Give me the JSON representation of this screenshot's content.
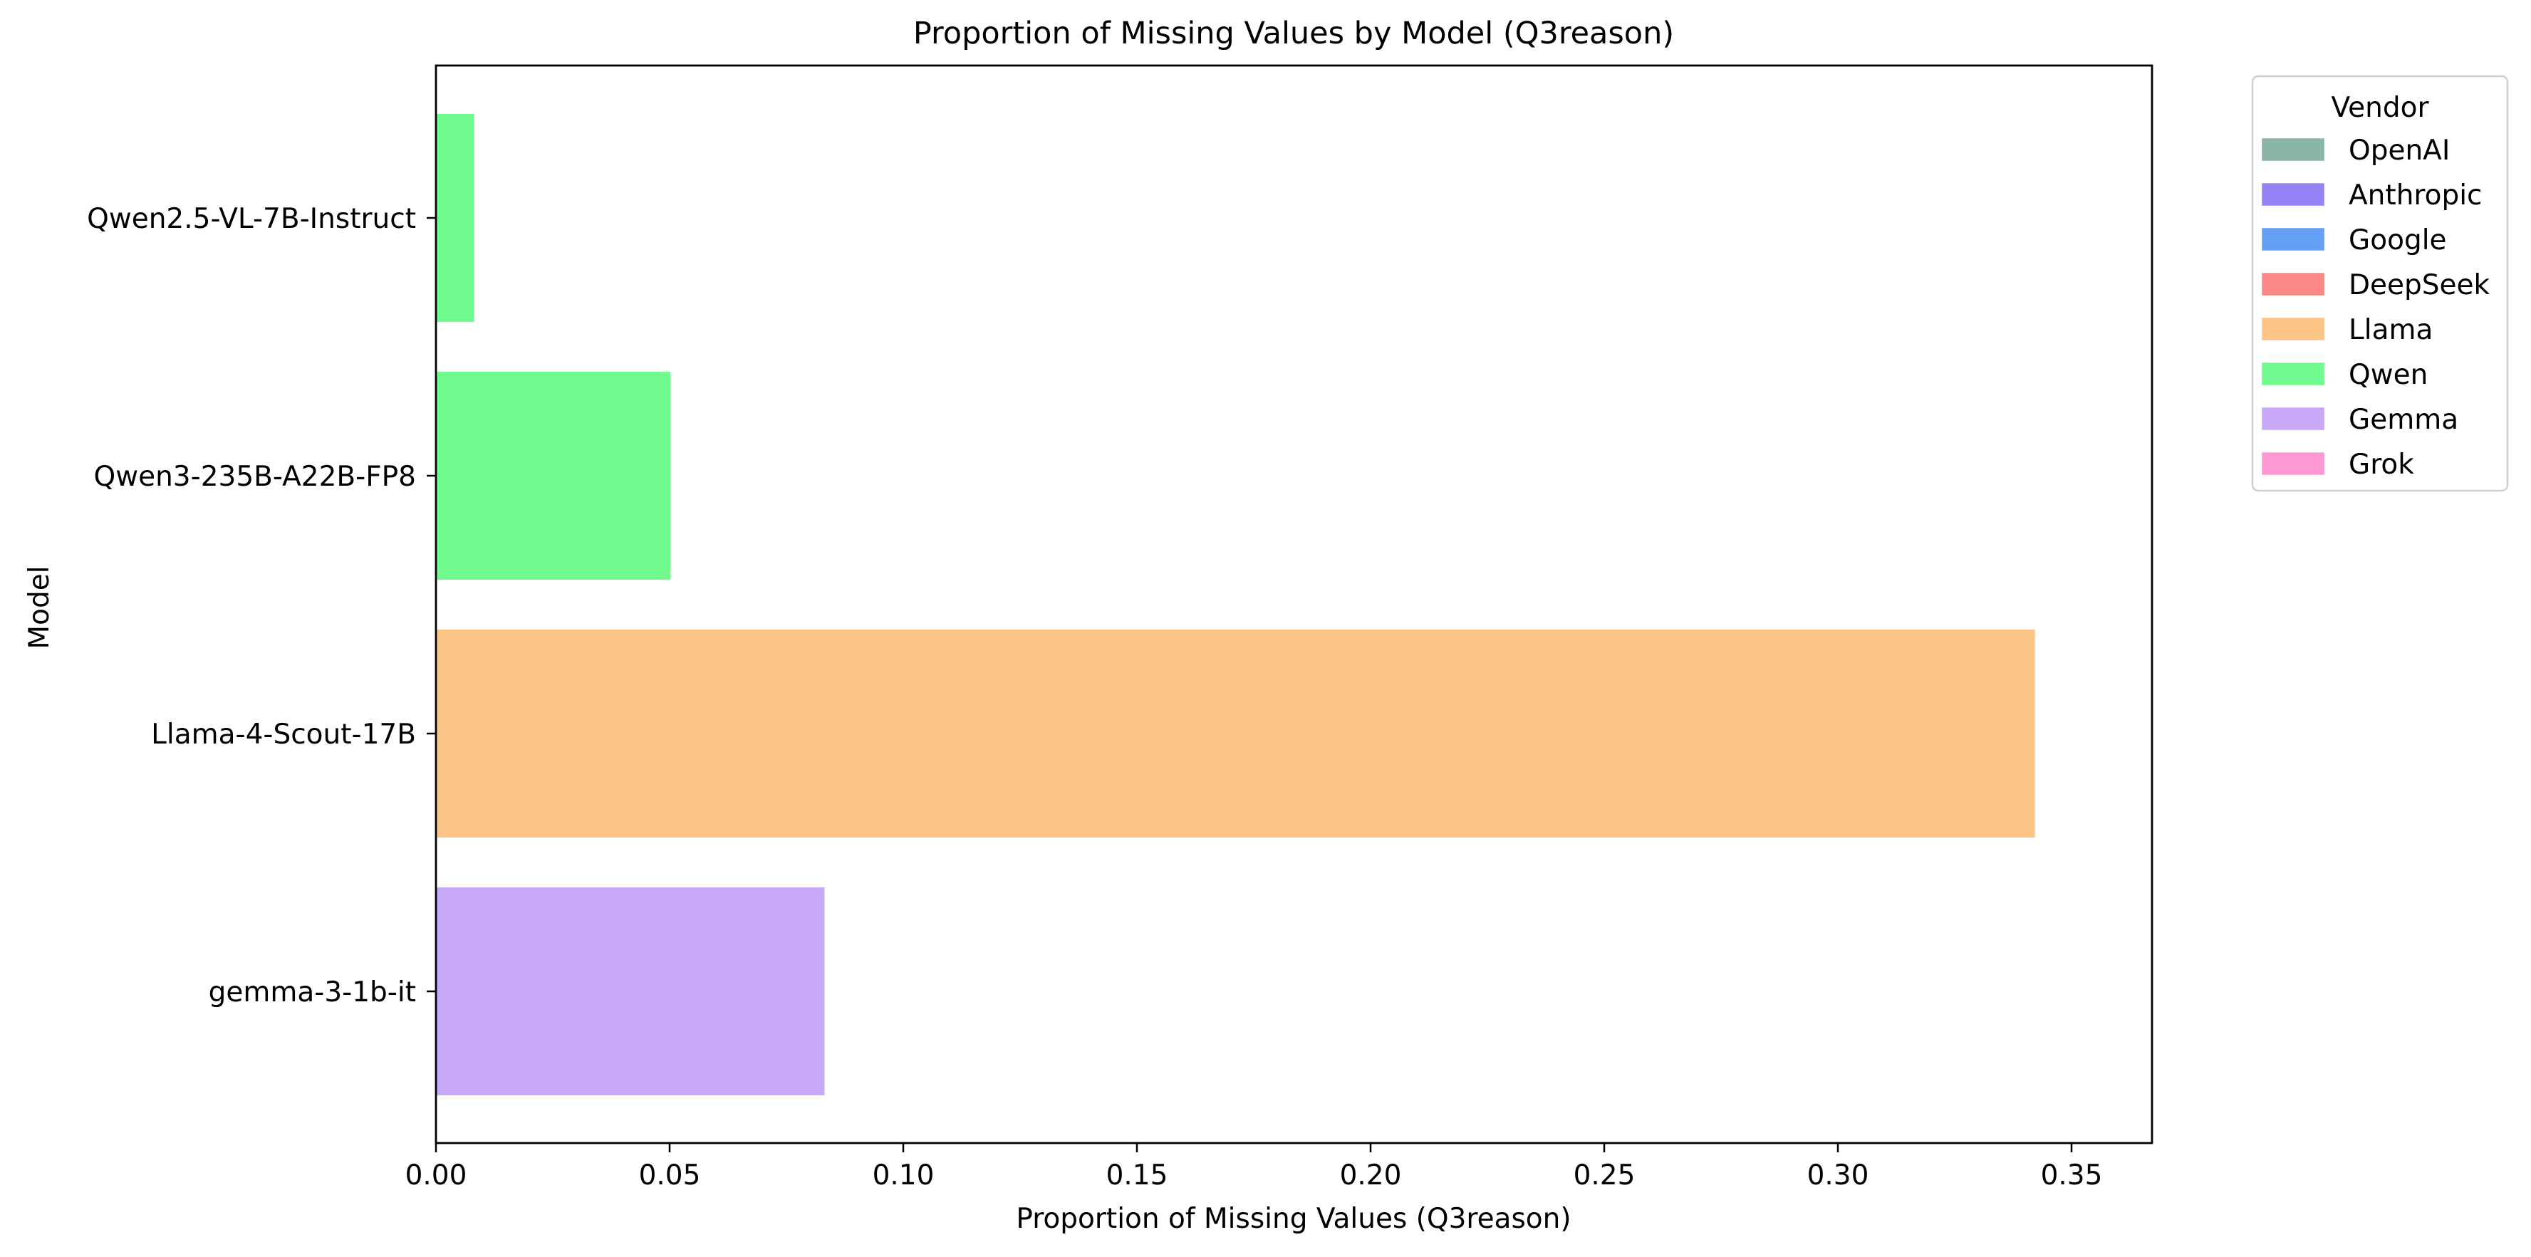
{
  "chart_data": {
    "type": "bar",
    "orientation": "horizontal",
    "title": "Proportion of Missing Values by Model (Q3reason)",
    "xlabel": "Proportion of Missing Values (Q3reason)",
    "ylabel": "Model",
    "xlim": [
      0,
      0.36
    ],
    "xticks": [
      {
        "value": 0.0,
        "label": "0.00"
      },
      {
        "value": 0.05,
        "label": "0.05"
      },
      {
        "value": 0.1,
        "label": "0.10"
      },
      {
        "value": 0.15,
        "label": "0.15"
      },
      {
        "value": 0.2,
        "label": "0.20"
      },
      {
        "value": 0.25,
        "label": "0.25"
      },
      {
        "value": 0.3,
        "label": "0.30"
      },
      {
        "value": 0.35,
        "label": "0.35"
      }
    ],
    "grid": false,
    "categories": [
      "Qwen2.5-VL-7B-Instruct",
      "Qwen3-235B-A22B-FP8",
      "Llama-4-Scout-17B",
      "gemma-3-1b-it"
    ],
    "values": [
      0.008,
      0.05,
      0.342,
      0.083
    ],
    "bar_vendor": [
      "Qwen",
      "Qwen",
      "Llama",
      "Gemma"
    ],
    "legend": {
      "title": "Vendor",
      "placement": "outside-right-top",
      "entries": [
        {
          "name": "OpenAI",
          "color": "#8ab5a8"
        },
        {
          "name": "Anthropic",
          "color": "#9583f6"
        },
        {
          "name": "Google",
          "color": "#64a1f5"
        },
        {
          "name": "DeepSeek",
          "color": "#fb8886"
        },
        {
          "name": "Llama",
          "color": "#fec589"
        },
        {
          "name": "Qwen",
          "color": "#71fb8f"
        },
        {
          "name": "Gemma",
          "color": "#c8a9f7"
        },
        {
          "name": "Grok",
          "color": "#fe98d2"
        }
      ]
    }
  }
}
